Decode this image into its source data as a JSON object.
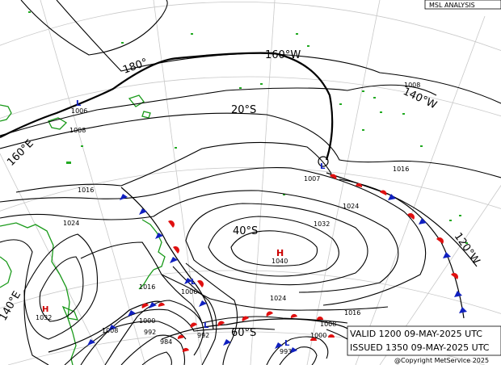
{
  "title": "MSL ANALYSIS",
  "valid_text": "VALID  1200  09-MAY-2025 UTC",
  "issued_text": "ISSUED 1350  09-MAY-2025 UTC",
  "copyright": "@Copyright MetService 2025",
  "colors": {
    "isobar": "#000000",
    "grid": "#c8c8c8",
    "coastline": "#1a9a1a",
    "high_label": "#cc0000",
    "cold_front": "#1020c0",
    "warm_front": "#e01010"
  },
  "lat_lon_labels": [
    "180°",
    "160°W",
    "140°W",
    "160°E",
    "20°S",
    "40°S",
    "140°E",
    "120°W",
    "60°S"
  ],
  "pressure_centres": [
    {
      "type": "H",
      "value": "1040"
    },
    {
      "type": "H",
      "value": "1032"
    },
    {
      "type": "L",
      "value": "1006"
    },
    {
      "type": "L",
      "value": "1007"
    },
    {
      "type": "L",
      "value": "1006"
    },
    {
      "type": "L",
      "value": "992"
    },
    {
      "type": "L",
      "value": "993"
    }
  ],
  "isobar_labels": [
    "1008",
    "1008",
    "1016",
    "1016",
    "1024",
    "1024",
    "1032",
    "1016",
    "1024",
    "1016",
    "1008",
    "1000",
    "1000",
    "992",
    "984",
    "1008"
  ]
}
